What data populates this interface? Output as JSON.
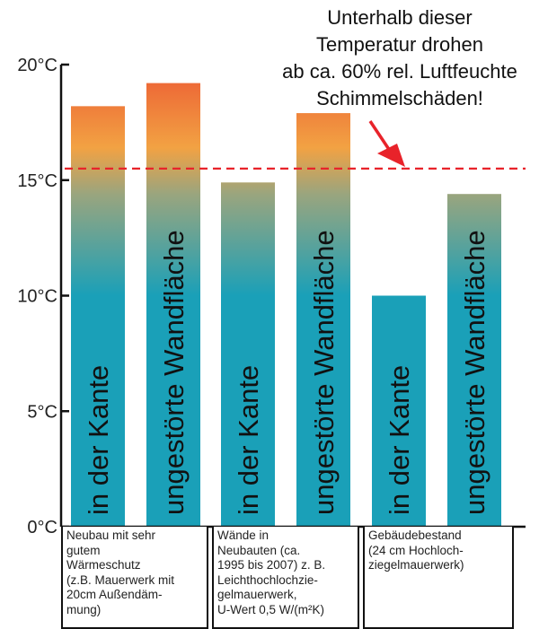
{
  "chart_data": {
    "type": "bar",
    "unit": "°C",
    "ylim": [
      0,
      20
    ],
    "y_ticks": [
      {
        "value": 0,
        "label": "0°C"
      },
      {
        "value": 5,
        "label": "5°C"
      },
      {
        "value": 10,
        "label": "10°C"
      },
      {
        "value": 15,
        "label": "15°C"
      },
      {
        "value": 20,
        "label": "20°C"
      }
    ],
    "bars": [
      {
        "group": 0,
        "label": "in der Kante",
        "value": 18.2
      },
      {
        "group": 0,
        "label": "ungestörte Wandfläche",
        "value": 19.2
      },
      {
        "group": 1,
        "label": "in der Kante",
        "value": 14.9
      },
      {
        "group": 1,
        "label": "ungestörte Wandfläche",
        "value": 17.9
      },
      {
        "group": 2,
        "label": "in der Kante",
        "value": 10.0
      },
      {
        "group": 2,
        "label": "ungestörte Wandfläche",
        "value": 14.4
      }
    ],
    "groups": [
      {
        "lines": [
          "Neubau mit sehr",
          "gutem",
          "Wärmeschutz",
          "(z.B. Mauerwerk mit",
          "20cm Außendäm-",
          "mung)"
        ]
      },
      {
        "lines": [
          "Wände in",
          "Neubauten (ca.",
          "1995 bis 2007) z. B.",
          "Leichthochlochzie-",
          "gelmauerwerk,",
          "U-Wert 0,5 W/(m²K)"
        ]
      },
      {
        "lines": [
          "Gebäudebestand",
          "(24 cm Hochloch-",
          "ziegelmauerwerk)"
        ]
      }
    ],
    "threshold": {
      "value": 15.5,
      "color": "#e8232a",
      "annotation": [
        "Unterhalb dieser",
        "Temperatur drohen",
        "ab ca. 60% rel. Luftfeuchte",
        "Schimmelschäden!"
      ]
    },
    "colors": {
      "bar_low": "#1aa0b8",
      "bar_mid": "#9aa57e",
      "bar_warm": "#f2a243",
      "bar_high": "#ec5a33",
      "axis": "#111111"
    }
  }
}
